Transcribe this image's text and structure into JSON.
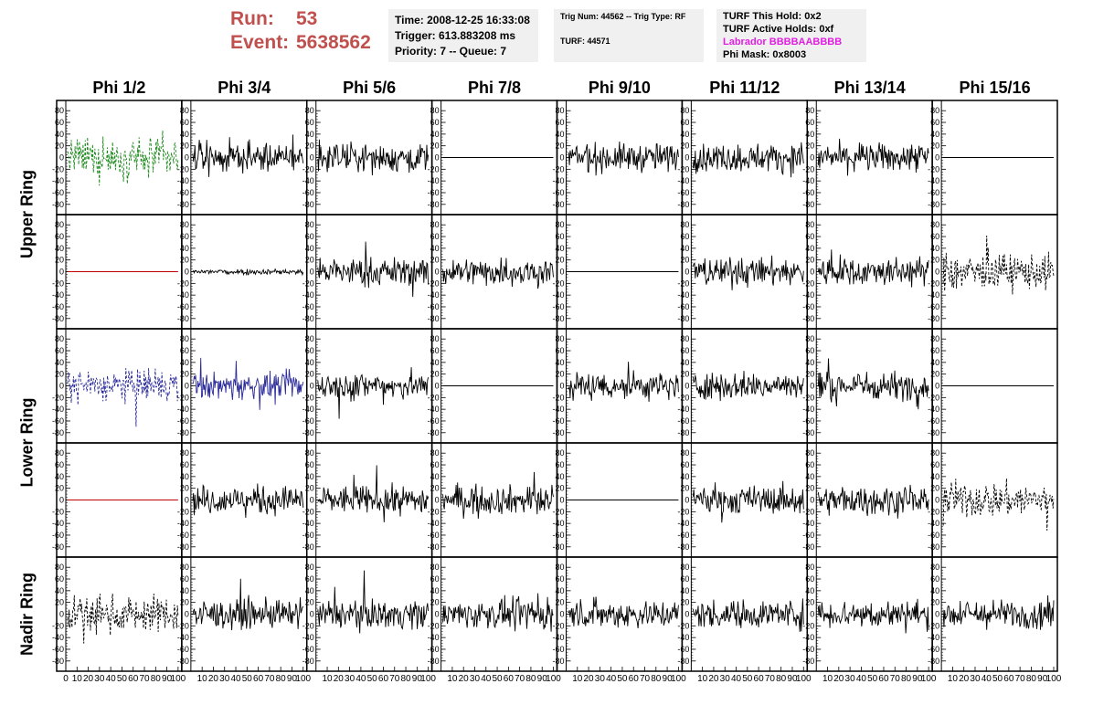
{
  "run": {
    "run_label": "Run:",
    "run_value": "53",
    "event_label": "Event:",
    "event_value": "5638562"
  },
  "info_box_1": {
    "time": "Time: 2008-12-25 16:33:08",
    "trigger": "Trigger: 613.883208 ms",
    "priority": "Priority: 7 -- Queue: 7"
  },
  "info_box_2": {
    "trig": "Trig Num: 44562 -- Trig Type: RF",
    "turf": "TURF: 44571"
  },
  "info_box_3": {
    "hold": "TURF This Hold: 0x2",
    "active": "TURF Active Holds: 0xf",
    "labrador_prefix": "Labrador",
    "labrador_value": "BBBBAABBBB",
    "phimask": "Phi Mask: 0x8003"
  },
  "phi_headers": [
    "Phi 1/2",
    "Phi 3/4",
    "Phi 5/6",
    "Phi 7/8",
    "Phi 9/10",
    "Phi 11/12",
    "Phi 13/14",
    "Phi 15/16"
  ],
  "ring_labels": [
    "Upper Ring",
    "Lower Ring",
    "Nadir Ring"
  ],
  "colors": {
    "green": "#1a8a1a",
    "blue": "#2a2a9a",
    "red": "#c00000",
    "black": "#000000"
  },
  "chart_data": {
    "type": "line",
    "rows": 5,
    "cols": 8,
    "xlim": [
      0,
      100
    ],
    "ylim": [
      -85,
      85
    ],
    "y_ticks": [
      80,
      60,
      40,
      20,
      0,
      -20,
      -40,
      -60,
      -80
    ],
    "x_ticks_first": [
      "0",
      "10",
      "20",
      "30",
      "40",
      "50",
      "60",
      "70",
      "80",
      "90",
      "100"
    ],
    "x_ticks_rest": [
      "10",
      "20",
      "30",
      "40",
      "50",
      "60",
      "70",
      "80",
      "90",
      "100"
    ],
    "panels": [
      [
        "green-dash",
        "noise",
        "noise",
        "flat-black",
        "noise",
        "noise",
        "noise",
        "flat-black"
      ],
      [
        "flat-red",
        "small-noise",
        "noise",
        "noise",
        "flat-black",
        "noise",
        "noise",
        "black-dash"
      ],
      [
        "blue-dash",
        "blue-noise",
        "noise",
        "flat-black",
        "noise",
        "noise",
        "noise",
        "flat-black"
      ],
      [
        "flat-red",
        "noise",
        "noise",
        "noise",
        "flat-black",
        "noise",
        "noise",
        "black-dash"
      ],
      [
        "black-dash",
        "noise",
        "noise",
        "noise",
        "noise",
        "noise",
        "noise",
        "noise"
      ]
    ]
  }
}
